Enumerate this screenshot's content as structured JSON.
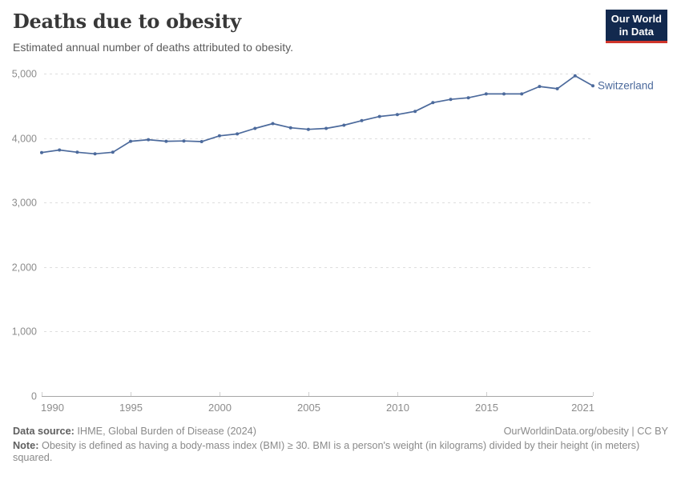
{
  "header": {
    "title": "Deaths due to obesity",
    "subtitle": "Estimated annual number of deaths attributed to obesity.",
    "logo": {
      "line1": "Our World",
      "line2": "in Data"
    }
  },
  "chart_data": {
    "type": "line",
    "title": "Deaths due to obesity",
    "subtitle": "Estimated annual number of deaths attributed to obesity.",
    "x": [
      1990,
      1991,
      1992,
      1993,
      1994,
      1995,
      1996,
      1997,
      1998,
      1999,
      2000,
      2001,
      2002,
      2003,
      2004,
      2005,
      2006,
      2007,
      2008,
      2009,
      2010,
      2011,
      2012,
      2013,
      2014,
      2015,
      2016,
      2017,
      2018,
      2019,
      2020,
      2021
    ],
    "series": [
      {
        "name": "Switzerland",
        "color": "#4c6a9c",
        "values": [
          3775,
          3815,
          3780,
          3755,
          3780,
          3950,
          3975,
          3950,
          3955,
          3945,
          4035,
          4065,
          4150,
          4225,
          4160,
          4135,
          4150,
          4200,
          4270,
          4335,
          4365,
          4415,
          4550,
          4600,
          4625,
          4685,
          4685,
          4685,
          4800,
          4765,
          4965,
          4812
        ]
      }
    ],
    "xlabel": "",
    "ylabel": "",
    "ylim": [
      0,
      5000
    ],
    "yticks": [
      0,
      1000,
      2000,
      3000,
      4000,
      5000
    ],
    "ytick_labels": [
      "0",
      "1,000",
      "2,000",
      "3,000",
      "4,000",
      "5,000"
    ],
    "xticks": [
      1990,
      1995,
      2000,
      2005,
      2010,
      2015,
      2021
    ],
    "grid": "horizontal-dashed",
    "legend_position": "end-of-line-label"
  },
  "footer": {
    "datasource_label": "Data source:",
    "datasource_value": " IHME, Global Burden of Disease (2024)",
    "link": "OurWorldinData.org/obesity | CC BY",
    "note_label": "Note:",
    "note_value": " Obesity is defined as having a body-mass index (BMI) ≥ 30. BMI is a person's weight (in kilograms) divided by their height (in meters) squared."
  },
  "colors": {
    "line": "#4c6a9c",
    "logo_bg": "#12294e",
    "logo_red": "#d0352b",
    "grid": "#dedede",
    "axis": "#a6a6a6",
    "tick": "#cfcfcf",
    "tick_text": "#8c8c8c"
  }
}
